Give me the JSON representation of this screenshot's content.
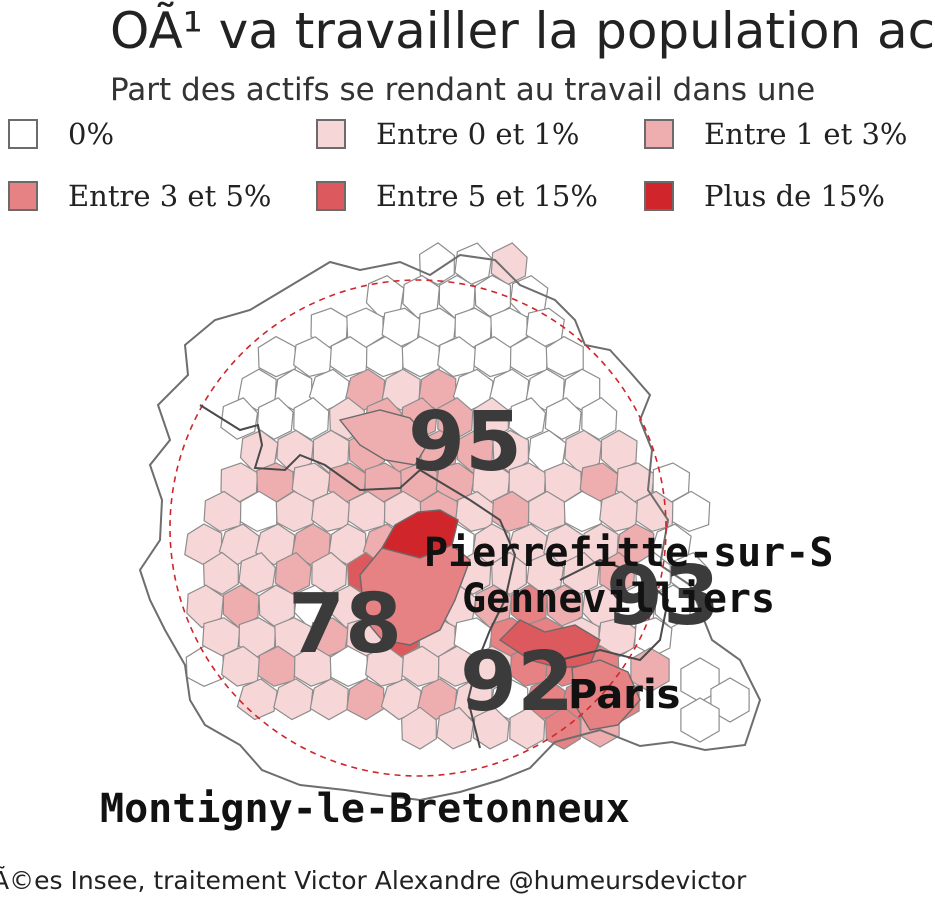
{
  "header": {
    "title": "OÃ¹ va travailler la population ac",
    "subtitle": "Part des actifs se rendant au travail dans une"
  },
  "legend": [
    {
      "label": "0%",
      "color": "#ffffff"
    },
    {
      "label": "Entre 0 et 1%",
      "color": "#f6d6d7"
    },
    {
      "label": "Entre 1 et 3%",
      "color": "#eeaeb0"
    },
    {
      "label": "Entre 3 et 5%",
      "color": "#e68184"
    },
    {
      "label": "Entre 5 et 15%",
      "color": "#dc5a5e"
    },
    {
      "label": "Plus de 15%",
      "color": "#d0262b"
    }
  ],
  "map": {
    "departments": [
      "95",
      "78",
      "92",
      "93"
    ],
    "cities": [
      "Pierrefitte-sur-S",
      "Gennevilliers",
      "Paris",
      "Montigny-le-Bretonneux"
    ]
  },
  "caption": "Ã©es Insee, traitement Victor Alexandre @humeursdevictor"
}
